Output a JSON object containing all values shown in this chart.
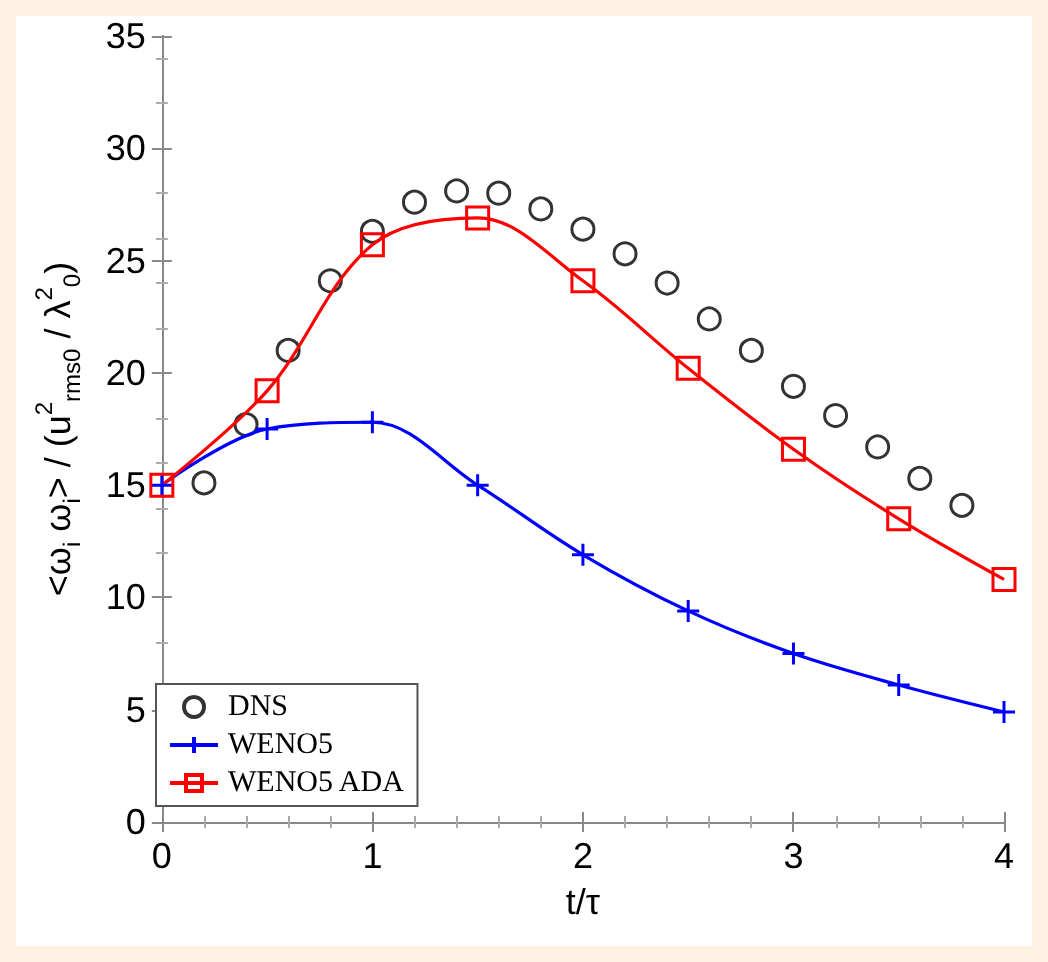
{
  "chart_data": {
    "type": "line",
    "xlabel": "t/τ",
    "ylabel": "<ω$_{i}$ ω$_{i}$> / (u$^{2}$$_{rms0}$ / λ$^{2}$$_{0}$)",
    "xlim": [
      0,
      4
    ],
    "xticks": [
      0,
      1,
      2,
      3,
      4
    ],
    "ylim": [
      0,
      35
    ],
    "yticks": [
      0,
      5,
      10,
      15,
      20,
      25,
      30,
      35
    ],
    "grid": false,
    "legend": "bottom left",
    "series": [
      {
        "name": "DNS",
        "type": "scatter",
        "marker": "circle",
        "color": "#000000",
        "x": [
          0.2,
          0.4,
          0.6,
          0.8,
          1.0,
          1.2,
          1.4,
          1.6,
          1.8,
          2.0,
          2.2,
          2.4,
          2.6,
          2.8,
          3.0,
          3.2,
          3.4,
          3.6,
          3.8
        ],
        "values": [
          15.1,
          17.7,
          21.0,
          24.1,
          26.3,
          27.6,
          28.1,
          28.0,
          27.3,
          26.4,
          25.3,
          24.0,
          22.4,
          21.0,
          19.4,
          18.1,
          16.7,
          15.3,
          14.1
        ]
      },
      {
        "name": "WENO5",
        "marker": "cross",
        "color": "#0000ff",
        "x": [
          0,
          0.5,
          1.0,
          1.5,
          2.0,
          2.5,
          3.0,
          3.5,
          4.0
        ],
        "values": [
          15.0,
          17.5,
          17.8,
          15.0,
          11.9,
          9.4,
          7.5,
          6.1,
          4.9
        ]
      },
      {
        "name": "WENO5 ADA",
        "marker": "square",
        "color": "#ff0000",
        "x": [
          0,
          0.5,
          1.0,
          1.5,
          2.0,
          2.5,
          3.0,
          3.5,
          4.0
        ],
        "values": [
          15.0,
          19.2,
          25.7,
          26.9,
          24.1,
          20.2,
          16.6,
          13.5,
          10.8
        ]
      }
    ]
  }
}
